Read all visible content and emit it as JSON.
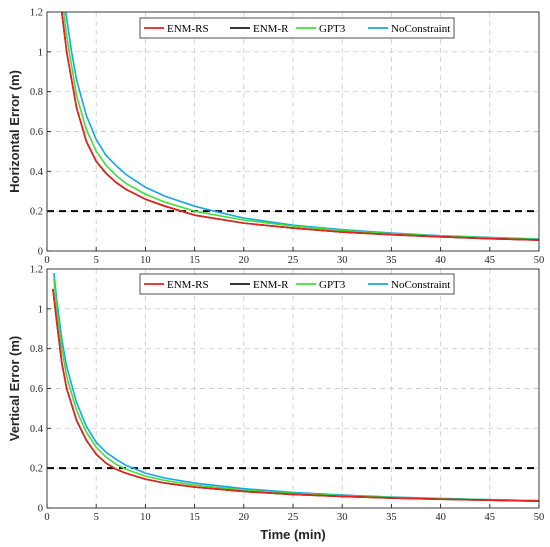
{
  "chart_data": [
    {
      "type": "line",
      "ylabel": "Horizontal Error (m)",
      "xlabel": "",
      "xlim": [
        0,
        50
      ],
      "ylim": [
        0,
        1.2
      ],
      "xticks": [
        0,
        5,
        10,
        15,
        20,
        25,
        30,
        35,
        40,
        45,
        50
      ],
      "yticks": [
        0,
        0.2,
        0.4,
        0.6,
        0.8,
        1,
        1.2
      ],
      "xtick_labels": [
        "0",
        "5",
        "10",
        "15",
        "20",
        "25",
        "30",
        "35",
        "40",
        "45",
        "50"
      ],
      "ytick_labels": [
        "0",
        "0.2",
        "0.4",
        "0.6",
        "0.8",
        "1",
        "1.2"
      ],
      "grid": true,
      "legend_position": "top-center",
      "reference_line": {
        "y": 0.2,
        "style": "dashed",
        "color": "#000000"
      },
      "series": [
        {
          "name": "ENM-RS",
          "color": "#e8211c",
          "x": [
            1.5,
            2,
            3,
            4,
            5,
            6,
            7,
            8,
            10,
            12,
            15,
            20,
            25,
            30,
            35,
            40,
            45,
            50
          ],
          "values": [
            1.2,
            1.0,
            0.72,
            0.55,
            0.45,
            0.39,
            0.345,
            0.31,
            0.26,
            0.225,
            0.18,
            0.14,
            0.115,
            0.095,
            0.082,
            0.071,
            0.062,
            0.055
          ]
        },
        {
          "name": "ENM-R",
          "color": "#1a1a1a",
          "x": [
            1.5,
            2,
            3,
            4,
            5,
            6,
            7,
            8,
            10,
            12,
            15,
            20,
            25,
            30,
            35,
            40,
            45,
            50
          ],
          "values": [
            1.2,
            1.0,
            0.72,
            0.55,
            0.45,
            0.39,
            0.345,
            0.31,
            0.26,
            0.225,
            0.18,
            0.14,
            0.115,
            0.095,
            0.082,
            0.071,
            0.062,
            0.055
          ]
        },
        {
          "name": "GPT3",
          "color": "#3fe03a",
          "x": [
            1.7,
            2,
            3,
            4,
            5,
            6,
            7,
            8,
            10,
            12,
            15,
            20,
            25,
            30,
            35,
            40,
            45,
            50
          ],
          "values": [
            1.2,
            1.08,
            0.78,
            0.61,
            0.5,
            0.43,
            0.38,
            0.34,
            0.285,
            0.245,
            0.2,
            0.155,
            0.125,
            0.103,
            0.087,
            0.075,
            0.066,
            0.058
          ]
        },
        {
          "name": "NoConstraint",
          "color": "#1aa3e8",
          "x": [
            1.9,
            2.5,
            3,
            4,
            5,
            6,
            7,
            8,
            10,
            12,
            15,
            17,
            20,
            25,
            30,
            35,
            40,
            45,
            50
          ],
          "values": [
            1.2,
            1.0,
            0.86,
            0.68,
            0.56,
            0.48,
            0.43,
            0.385,
            0.32,
            0.275,
            0.225,
            0.2,
            0.165,
            0.13,
            0.107,
            0.09,
            0.077,
            0.068,
            0.06
          ]
        }
      ]
    },
    {
      "type": "line",
      "ylabel": "Vertical Error (m)",
      "xlabel": "Time (min)",
      "xlim": [
        0,
        50
      ],
      "ylim": [
        0,
        1.2
      ],
      "xticks": [
        0,
        5,
        10,
        15,
        20,
        25,
        30,
        35,
        40,
        45,
        50
      ],
      "yticks": [
        0,
        0.2,
        0.4,
        0.6,
        0.8,
        1,
        1.2
      ],
      "xtick_labels": [
        "0",
        "5",
        "10",
        "15",
        "20",
        "25",
        "30",
        "35",
        "40",
        "45",
        "50"
      ],
      "ytick_labels": [
        "0",
        "0.2",
        "0.4",
        "0.6",
        "0.8",
        "1",
        "1.2"
      ],
      "grid": true,
      "legend_position": "top-center",
      "reference_line": {
        "y": 0.2,
        "style": "dashed",
        "color": "#000000"
      },
      "series": [
        {
          "name": "ENM-RS",
          "color": "#e8211c",
          "x": [
            0.6,
            1,
            1.5,
            2,
            3,
            4,
            5,
            6,
            7,
            8,
            10,
            12,
            15,
            20,
            25,
            30,
            35,
            40,
            45,
            50
          ],
          "values": [
            1.1,
            0.93,
            0.73,
            0.6,
            0.44,
            0.34,
            0.27,
            0.225,
            0.195,
            0.175,
            0.145,
            0.125,
            0.105,
            0.083,
            0.068,
            0.058,
            0.05,
            0.044,
            0.039,
            0.035
          ]
        },
        {
          "name": "ENM-R",
          "color": "#1a1a1a",
          "x": [
            0.6,
            1,
            1.5,
            2,
            3,
            4,
            5,
            6,
            7,
            8,
            10,
            12,
            15,
            20,
            25,
            30,
            35,
            40,
            45,
            50
          ],
          "values": [
            1.1,
            0.93,
            0.73,
            0.6,
            0.44,
            0.34,
            0.27,
            0.225,
            0.195,
            0.175,
            0.145,
            0.125,
            0.105,
            0.083,
            0.068,
            0.058,
            0.05,
            0.044,
            0.039,
            0.035
          ]
        },
        {
          "name": "GPT3",
          "color": "#3fe03a",
          "x": [
            0.7,
            1,
            1.5,
            2,
            3,
            4,
            5,
            6,
            7,
            8,
            10,
            12,
            15,
            20,
            25,
            30,
            35,
            40,
            45,
            50
          ],
          "values": [
            1.15,
            1.0,
            0.8,
            0.66,
            0.49,
            0.38,
            0.305,
            0.255,
            0.22,
            0.195,
            0.16,
            0.138,
            0.115,
            0.09,
            0.073,
            0.062,
            0.053,
            0.046,
            0.041,
            0.036
          ]
        },
        {
          "name": "NoConstraint",
          "color": "#1aa3e8",
          "x": [
            0.7,
            1,
            1.5,
            2,
            3,
            4,
            5,
            6,
            7,
            8,
            10,
            12,
            15,
            20,
            25,
            30,
            35,
            40,
            45,
            50
          ],
          "values": [
            1.18,
            1.04,
            0.85,
            0.71,
            0.53,
            0.41,
            0.33,
            0.28,
            0.245,
            0.215,
            0.175,
            0.15,
            0.125,
            0.097,
            0.078,
            0.065,
            0.055,
            0.048,
            0.042,
            0.037
          ]
        }
      ]
    }
  ]
}
